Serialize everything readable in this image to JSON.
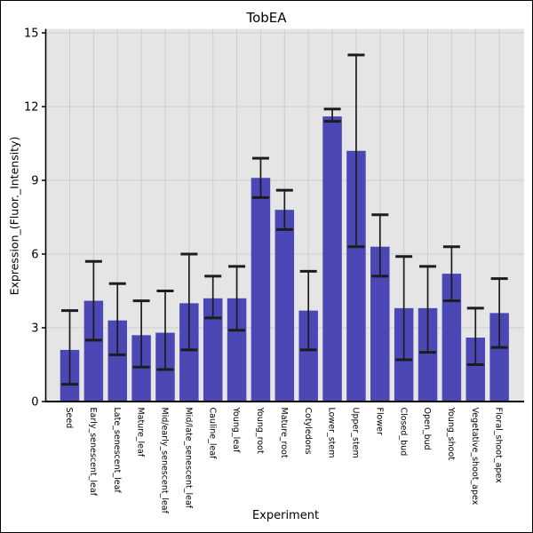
{
  "figure": {
    "title": "TobEA",
    "xlabel": "Experiment",
    "ylabel": "Expression_(Fluor._Intensity)"
  },
  "chart_data": {
    "type": "bar",
    "title": "TobEA",
    "xlabel": "Experiment",
    "ylabel": "Expression_(Fluor._Intensity)",
    "ylim": [
      0,
      15
    ],
    "yticks": [
      0,
      3,
      6,
      9,
      12,
      15
    ],
    "grid": true,
    "legend": "none",
    "error_bars": true,
    "categories": [
      "Seed",
      "Early_senescent_leaf",
      "Late_senescent_leaf",
      "Mature_leaf",
      "Mid/early_senescent_leaf",
      "Mid/late_senescent_leaf",
      "Cauline_leaf",
      "Young_leaf",
      "Young_root",
      "Mature_root",
      "Cotyledons",
      "Lower_stem",
      "Upper_stem",
      "Flower",
      "Closed_bud",
      "Open_bud",
      "Young_shoot",
      "Vegetative_shoot_apex",
      "Floral_shoot_apex"
    ],
    "values": [
      2.1,
      4.1,
      3.3,
      2.7,
      2.8,
      4.0,
      4.2,
      4.2,
      9.1,
      7.8,
      3.7,
      11.6,
      10.2,
      6.3,
      3.8,
      3.8,
      5.2,
      2.6,
      3.6
    ],
    "err_low": [
      0.7,
      2.5,
      1.9,
      1.4,
      1.3,
      2.1,
      3.4,
      2.9,
      8.3,
      7.0,
      2.1,
      11.4,
      6.3,
      5.1,
      1.7,
      2.0,
      4.1,
      1.5,
      2.2
    ],
    "err_high": [
      3.7,
      5.7,
      4.8,
      4.1,
      4.5,
      6.0,
      5.1,
      5.5,
      9.9,
      8.6,
      5.3,
      11.9,
      14.1,
      7.6,
      5.9,
      5.5,
      6.3,
      3.8,
      5.0
    ],
    "bar_color": "#4b48b5",
    "panel_bg": "#e5e5e5",
    "grid_color": "#cdcdcd",
    "axis_color": "#000000",
    "error_color": "#1c1c1c",
    "text_color": "#000000"
  }
}
